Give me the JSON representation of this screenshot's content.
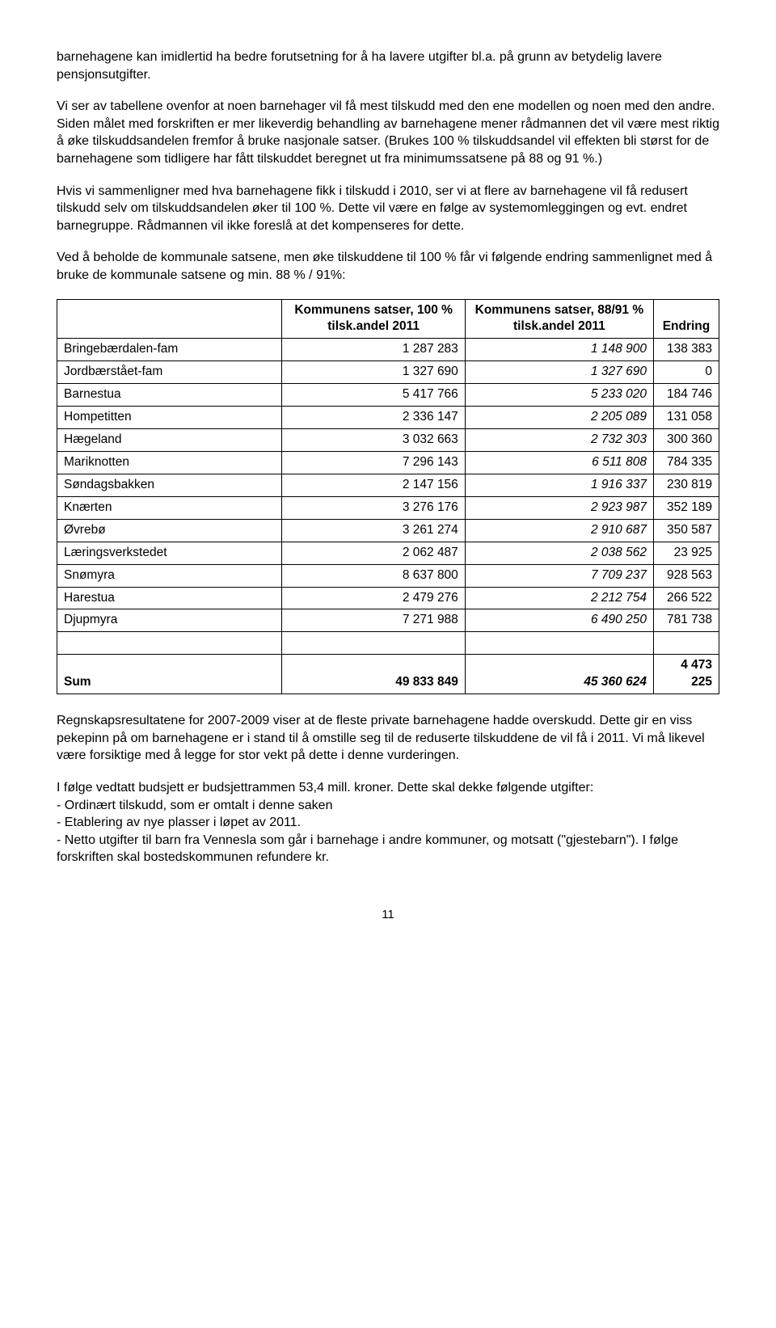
{
  "para1": "barnehagene kan imidlertid ha bedre forutsetning for å ha lavere utgifter bl.a. på grunn av betydelig lavere pensjonsutgifter.",
  "para2": "Vi ser av tabellene ovenfor at noen barnehager vil få mest tilskudd med den ene modellen og noen med den andre. Siden målet med forskriften er mer likeverdig behandling av barnehagene mener rådmannen det vil være mest riktig å øke tilskuddsandelen fremfor å bruke nasjonale satser. (Brukes 100 % tilskuddsandel vil effekten bli størst for de barnehagene som tidligere har fått tilskuddet beregnet ut fra minimumssatsene på 88 og 91 %.)",
  "para3": "Hvis vi sammenligner med hva barnehagene fikk i tilskudd i 2010, ser vi at flere av barnehagene vil få redusert tilskudd selv om tilskuddsandelen øker til 100 %. Dette vil være en følge av systemomleggingen og evt. endret barnegruppe. Rådmannen vil ikke foreslå at det kompenseres for dette.",
  "para4": "Ved å beholde de kommunale satsene, men øke tilskuddene til 100 % får vi følgende endring sammenlignet med å bruke de kommunale satsene og min. 88 % / 91%:",
  "table": {
    "headers": {
      "col1": "",
      "col2": "Kommunens satser, 100 % tilsk.andel 2011",
      "col3": "Kommunens satser, 88/91 % tilsk.andel 2011",
      "col4": "Endring"
    },
    "rows": [
      {
        "name": "Bringebærdalen-fam",
        "c2": "1 287 283",
        "c3": "1 148 900",
        "c4": "138 383",
        "italic": true
      },
      {
        "name": "Jordbærstået-fam",
        "c2": "1 327 690",
        "c3": "1 327 690",
        "c4": "0",
        "italic": true
      },
      {
        "name": "Barnestua",
        "c2": "5 417 766",
        "c3": "5 233 020",
        "c4": "184 746",
        "italic": true
      },
      {
        "name": "Hompetitten",
        "c2": "2 336 147",
        "c3": "2 205 089",
        "c4": "131 058",
        "italic": true
      },
      {
        "name": "Hægeland",
        "c2": "3 032 663",
        "c3": "2 732 303",
        "c4": "300 360",
        "italic": true
      },
      {
        "name": "Mariknotten",
        "c2": "7 296 143",
        "c3": "6 511 808",
        "c4": "784 335",
        "italic": true
      },
      {
        "name": "Søndagsbakken",
        "c2": "2 147 156",
        "c3": "1 916 337",
        "c4": "230 819",
        "italic": true
      },
      {
        "name": "Knærten",
        "c2": "3 276 176",
        "c3": "2 923 987",
        "c4": "352 189",
        "italic": true
      },
      {
        "name": "Øvrebø",
        "c2": "3 261 274",
        "c3": "2 910 687",
        "c4": "350 587",
        "italic": true
      },
      {
        "name": "Læringsverkstedet",
        "c2": "2 062 487",
        "c3": "2 038 562",
        "c4": "23 925",
        "italic": true
      },
      {
        "name": "Snømyra",
        "c2": "8 637 800",
        "c3": "7 709 237",
        "c4": "928 563",
        "italic": true
      },
      {
        "name": "Harestua",
        "c2": "2 479 276",
        "c3": "2 212 754",
        "c4": "266 522",
        "italic": true
      },
      {
        "name": "Djupmyra",
        "c2": "7 271 988",
        "c3": "6 490 250",
        "c4": "781 738",
        "italic": true
      }
    ],
    "sum": {
      "name": "Sum",
      "c2": "49 833 849",
      "c3": "45 360 624",
      "c4": "4 473 225"
    }
  },
  "para5": "Regnskapsresultatene for 2007-2009 viser at de fleste private barnehagene hadde overskudd. Dette gir en viss pekepinn på om barnehagene er i stand til å omstille seg til de reduserte tilskuddene de vil få i 2011. Vi må likevel være forsiktige med å legge for stor vekt på dette i denne vurderingen.",
  "para6": "I følge vedtatt budsjett er budsjettrammen 53,4 mill. kroner. Dette skal dekke følgende utgifter:",
  "bullets": [
    "- Ordinært tilskudd, som er omtalt i denne saken",
    "- Etablering av nye plasser i løpet av 2011.",
    "- Netto utgifter til barn fra Vennesla som går i barnehage i andre kommuner, og motsatt (\"gjestebarn\"). I følge forskriften skal bostedskommunen refundere kr."
  ],
  "page_number": "11"
}
